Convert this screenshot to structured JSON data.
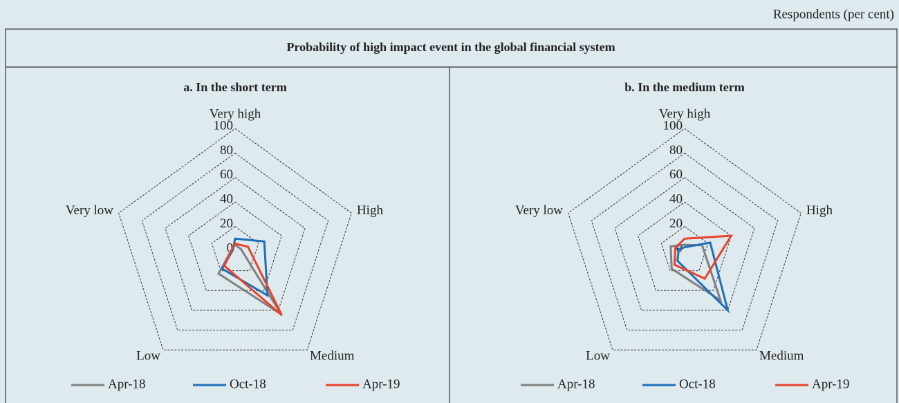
{
  "title": "Probability of high impact event in the global financial system",
  "unit_note": "Respondents (per cent)",
  "chart_data": [
    {
      "type": "radar",
      "title": "a. In the short term",
      "categories": [
        "Very high",
        "High",
        "Medium",
        "Low",
        "Very low"
      ],
      "rlim": [
        0,
        100
      ],
      "rticks": [
        0,
        20,
        40,
        60,
        80,
        100
      ],
      "series": [
        {
          "name": "Apr-18",
          "color": "#7f7f7f",
          "values": [
            5,
            5,
            64,
            23,
            3
          ]
        },
        {
          "name": "Oct-18",
          "color": "#1f6fb8",
          "values": [
            10,
            25,
            45,
            18,
            2
          ]
        },
        {
          "name": "Apr-19",
          "color": "#e8432a",
          "values": [
            6,
            11,
            65,
            15,
            3
          ]
        }
      ]
    },
    {
      "type": "radar",
      "title": "b. In the medium term",
      "categories": [
        "Very high",
        "High",
        "Medium",
        "Low",
        "Very low"
      ],
      "rlim": [
        0,
        100
      ],
      "rticks": [
        0,
        20,
        40,
        60,
        80,
        100
      ],
      "series": [
        {
          "name": "Apr-18",
          "color": "#7f7f7f",
          "values": [
            5,
            15,
            50,
            18,
            12
          ]
        },
        {
          "name": "Oct-18",
          "color": "#1f6fb8",
          "values": [
            3,
            22,
            60,
            10,
            5
          ]
        },
        {
          "name": "Apr-19",
          "color": "#e8432a",
          "values": [
            10,
            40,
            28,
            14,
            8
          ]
        }
      ]
    }
  ]
}
